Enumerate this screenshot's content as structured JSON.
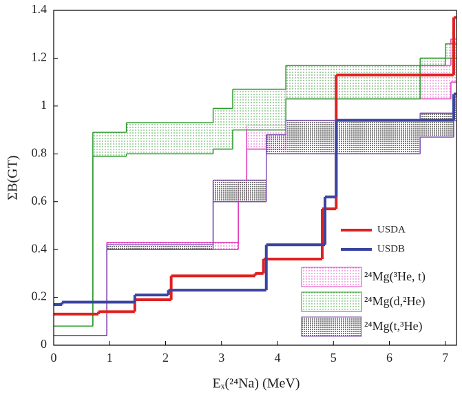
{
  "chart_data": {
    "type": "step",
    "xlabel": "Eₓ(²⁴Na) (MeV)",
    "ylabel": "ΣB(GT)",
    "xlim": [
      0,
      7.2
    ],
    "ylim": [
      0,
      1.4
    ],
    "xticks": [
      0,
      1,
      2,
      3,
      4,
      5,
      6,
      7
    ],
    "yticks": [
      0,
      0.2,
      0.4,
      0.6,
      0.8,
      1,
      1.2,
      1.4
    ],
    "bands": [
      {
        "name": "²⁴Mg(³He, t)",
        "color": "#e03cbc",
        "x": [
          0,
          0.95,
          3.3,
          3.45,
          4.15,
          7.1
        ],
        "lower": [
          0.04,
          0.4,
          0.6,
          0.82,
          1.03,
          1.1
        ],
        "upper": [
          0.04,
          0.43,
          0.68,
          0.92,
          1.17,
          1.28
        ]
      },
      {
        "name": "²⁴Mg(d,²He)",
        "color": "#2a9a2a",
        "x": [
          0,
          0.7,
          1.3,
          2.85,
          3.2,
          4.15,
          6.55,
          7.0
        ],
        "lower": [
          0.08,
          0.79,
          0.8,
          0.82,
          0.9,
          1.03,
          1.17,
          1.2
        ],
        "upper": [
          0.08,
          0.89,
          0.93,
          0.99,
          1.07,
          1.17,
          1.2,
          1.26
        ]
      },
      {
        "name": "²⁴Mg(t,³He)",
        "color": "#8050b0",
        "x": [
          0,
          0.95,
          2.85,
          3.8,
          4.15,
          6.55,
          7.15
        ],
        "lower": [
          0.04,
          0.4,
          0.6,
          0.8,
          0.8,
          0.87,
          0.94
        ],
        "upper": [
          0.04,
          0.42,
          0.69,
          0.88,
          0.94,
          0.97,
          1.04
        ]
      }
    ],
    "series": [
      {
        "name": "USDA",
        "color": "#e02020",
        "x": [
          0,
          0.8,
          1.45,
          2.1,
          3.6,
          3.75,
          4.8,
          5.05,
          7.15
        ],
        "values": [
          0.13,
          0.14,
          0.19,
          0.29,
          0.3,
          0.36,
          0.57,
          1.13,
          1.37
        ]
      },
      {
        "name": "USDB",
        "color": "#3a44a0",
        "x": [
          0,
          0.15,
          1.45,
          2.05,
          3.8,
          4.85,
          5.05,
          7.15
        ],
        "values": [
          0.17,
          0.18,
          0.21,
          0.23,
          0.42,
          0.62,
          0.94,
          1.05
        ]
      }
    ]
  }
}
